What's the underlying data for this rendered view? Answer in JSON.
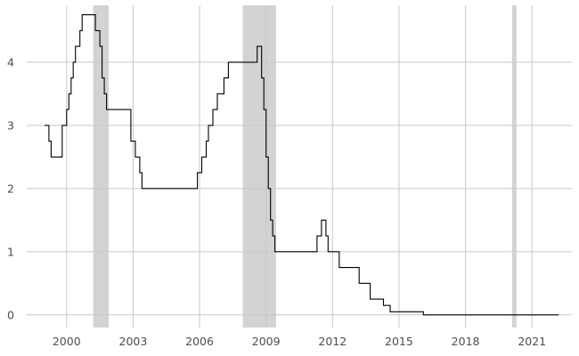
{
  "chart_data": {
    "type": "line",
    "title": "",
    "xlabel": "",
    "ylabel": "",
    "xlim": [
      1998.2,
      2022.8
    ],
    "ylim": [
      -0.2,
      4.9
    ],
    "xticks": [
      2000,
      2003,
      2006,
      2009,
      2012,
      2015,
      2018,
      2021
    ],
    "yticks": [
      0,
      1,
      2,
      3,
      4
    ],
    "grid": true,
    "legend": "none",
    "colors": {
      "line": "#000000",
      "recession": "#d3d3d3",
      "grid": "#c8c8c8",
      "tick_text": "#4d4d4d"
    },
    "shaded_periods": [
      {
        "start": 2001.2,
        "end": 2001.9
      },
      {
        "start": 2007.95,
        "end": 2009.45
      },
      {
        "start": 2020.1,
        "end": 2020.3
      }
    ],
    "series": [
      {
        "step": true,
        "points": [
          [
            1999.0,
            3.0
          ],
          [
            1999.2,
            2.75
          ],
          [
            1999.3,
            2.5
          ],
          [
            1999.7,
            2.5
          ],
          [
            1999.8,
            3.0
          ],
          [
            2000.0,
            3.25
          ],
          [
            2000.1,
            3.5
          ],
          [
            2000.2,
            3.75
          ],
          [
            2000.3,
            4.0
          ],
          [
            2000.4,
            4.25
          ],
          [
            2000.6,
            4.5
          ],
          [
            2000.7,
            4.75
          ],
          [
            2001.3,
            4.5
          ],
          [
            2001.5,
            4.25
          ],
          [
            2001.6,
            3.75
          ],
          [
            2001.7,
            3.5
          ],
          [
            2001.8,
            3.25
          ],
          [
            2002.9,
            2.75
          ],
          [
            2003.1,
            2.5
          ],
          [
            2003.3,
            2.25
          ],
          [
            2003.4,
            2.0
          ],
          [
            2005.9,
            2.25
          ],
          [
            2006.1,
            2.5
          ],
          [
            2006.3,
            2.75
          ],
          [
            2006.4,
            3.0
          ],
          [
            2006.6,
            3.25
          ],
          [
            2006.8,
            3.5
          ],
          [
            2007.1,
            3.75
          ],
          [
            2007.3,
            4.0
          ],
          [
            2008.6,
            4.25
          ],
          [
            2008.8,
            3.75
          ],
          [
            2008.9,
            3.25
          ],
          [
            2009.0,
            2.5
          ],
          [
            2009.1,
            2.0
          ],
          [
            2009.2,
            1.5
          ],
          [
            2009.3,
            1.25
          ],
          [
            2009.4,
            1.0
          ],
          [
            2011.3,
            1.25
          ],
          [
            2011.5,
            1.5
          ],
          [
            2011.7,
            1.25
          ],
          [
            2011.8,
            1.0
          ],
          [
            2012.3,
            0.75
          ],
          [
            2013.2,
            0.5
          ],
          [
            2013.7,
            0.25
          ],
          [
            2014.3,
            0.15
          ],
          [
            2014.6,
            0.05
          ],
          [
            2016.1,
            0.0
          ],
          [
            2022.2,
            0.0
          ]
        ]
      }
    ]
  }
}
